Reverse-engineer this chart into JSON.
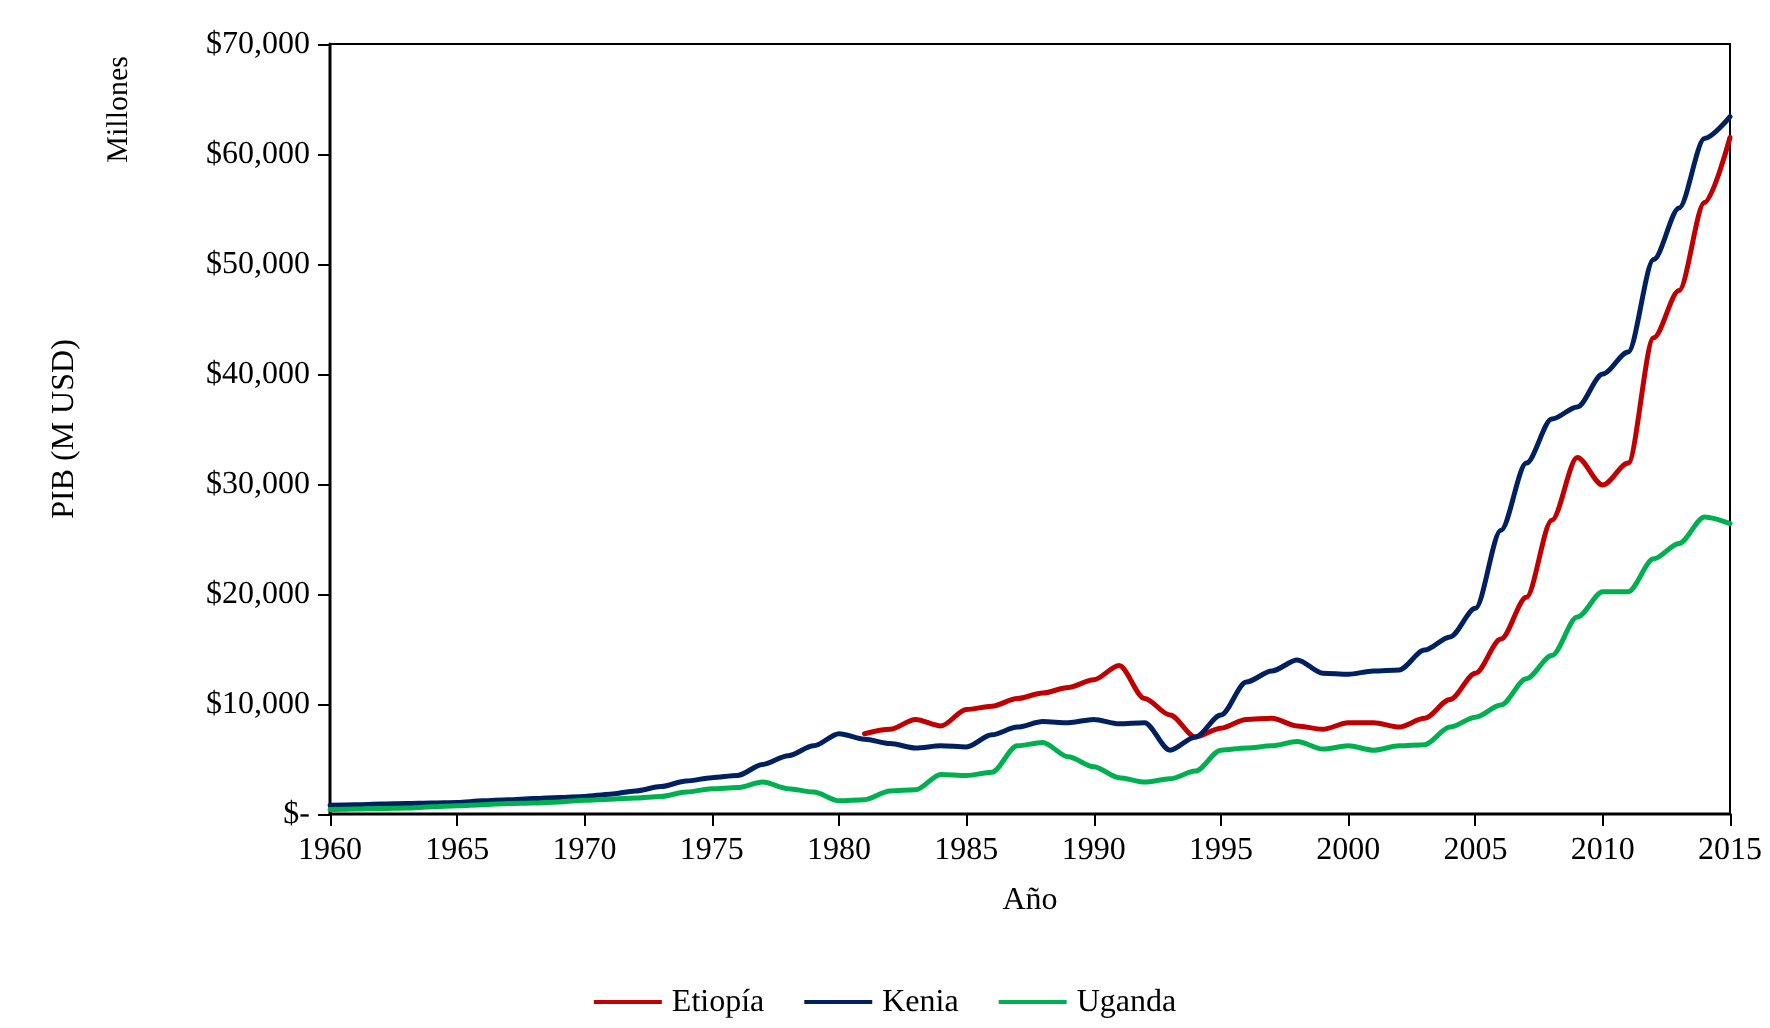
{
  "chart_data": {
    "type": "line",
    "xlabel": "Año",
    "ylabel": "PIB (M USD)",
    "annotations": [
      "Millones"
    ],
    "x": [
      1960,
      1961,
      1962,
      1963,
      1964,
      1965,
      1966,
      1967,
      1968,
      1969,
      1970,
      1971,
      1972,
      1973,
      1974,
      1975,
      1976,
      1977,
      1978,
      1979,
      1980,
      1981,
      1982,
      1983,
      1984,
      1985,
      1986,
      1987,
      1988,
      1989,
      1990,
      1991,
      1992,
      1993,
      1994,
      1995,
      1996,
      1997,
      1998,
      1999,
      2000,
      2001,
      2002,
      2003,
      2004,
      2005,
      2006,
      2007,
      2008,
      2009,
      2010,
      2011,
      2012,
      2013,
      2014,
      2015
    ],
    "series": [
      {
        "name": "Etiopía",
        "color": "#c00000",
        "x": [
          1981,
          1982,
          1983,
          1984,
          1985,
          1986,
          1987,
          1988,
          1989,
          1990,
          1991,
          1992,
          1993,
          1994,
          1995,
          1996,
          1997,
          1998,
          1999,
          2000,
          2001,
          2002,
          2003,
          2004,
          2005,
          2006,
          2007,
          2008,
          2009,
          2010,
          2011,
          2012,
          2013,
          2014,
          2015
        ],
        "values": [
          7300,
          7700,
          8600,
          8000,
          9500,
          9800,
          10500,
          11000,
          11500,
          12200,
          13500,
          10500,
          9000,
          7000,
          7800,
          8600,
          8700,
          8000,
          7700,
          8300,
          8300,
          7900,
          8700,
          10400,
          12800,
          15900,
          19700,
          26700,
          32400,
          29900,
          31900,
          43300,
          47600,
          55600,
          61500
        ]
      },
      {
        "name": "Kenia",
        "color": "#002060",
        "values": [
          800,
          850,
          900,
          950,
          1000,
          1050,
          1200,
          1300,
          1400,
          1500,
          1600,
          1800,
          2100,
          2500,
          3000,
          3300,
          3500,
          4500,
          5300,
          6200,
          7300,
          6800,
          6400,
          6000,
          6200,
          6100,
          7200,
          7900,
          8400,
          8300,
          8600,
          8200,
          8300,
          5800,
          7000,
          9000,
          12000,
          13000,
          14000,
          12800,
          12700,
          13000,
          13100,
          14900,
          16100,
          18700,
          25800,
          31900,
          35900,
          37000,
          40000,
          42000,
          50400,
          55100,
          61400,
          63400
        ]
      },
      {
        "name": "Uganda",
        "color": "#00b050",
        "values": [
          400,
          450,
          500,
          550,
          650,
          750,
          850,
          950,
          1000,
          1100,
          1250,
          1350,
          1450,
          1600,
          2000,
          2300,
          2400,
          2900,
          2300,
          2000,
          1200,
          1300,
          2100,
          2200,
          3600,
          3500,
          3800,
          6200,
          6500,
          5200,
          4300,
          3300,
          2900,
          3200,
          3900,
          5800,
          6000,
          6200,
          6600,
          5900,
          6200,
          5800,
          6200,
          6300,
          7900,
          8800,
          9900,
          12300,
          14400,
          17900,
          20200,
          20200,
          23200,
          24600,
          27000,
          26400
        ]
      }
    ],
    "xlim": [
      1960,
      2015
    ],
    "xticks": [
      1960,
      1965,
      1970,
      1975,
      1980,
      1985,
      1990,
      1995,
      2000,
      2005,
      2010,
      2015
    ],
    "ylim": [
      0,
      70000
    ],
    "yticks": [
      {
        "value": 0,
        "label": "$-"
      },
      {
        "value": 10000,
        "label": "$10,000"
      },
      {
        "value": 20000,
        "label": "$20,000"
      },
      {
        "value": 30000,
        "label": "$30,000"
      },
      {
        "value": 40000,
        "label": "$40,000"
      },
      {
        "value": 50000,
        "label": "$50,000"
      },
      {
        "value": 60000,
        "label": "$60,000"
      },
      {
        "value": 70000,
        "label": "$70,000"
      }
    ],
    "grid": false,
    "legend": "bottom",
    "marker": "none",
    "line_style": "solid"
  }
}
